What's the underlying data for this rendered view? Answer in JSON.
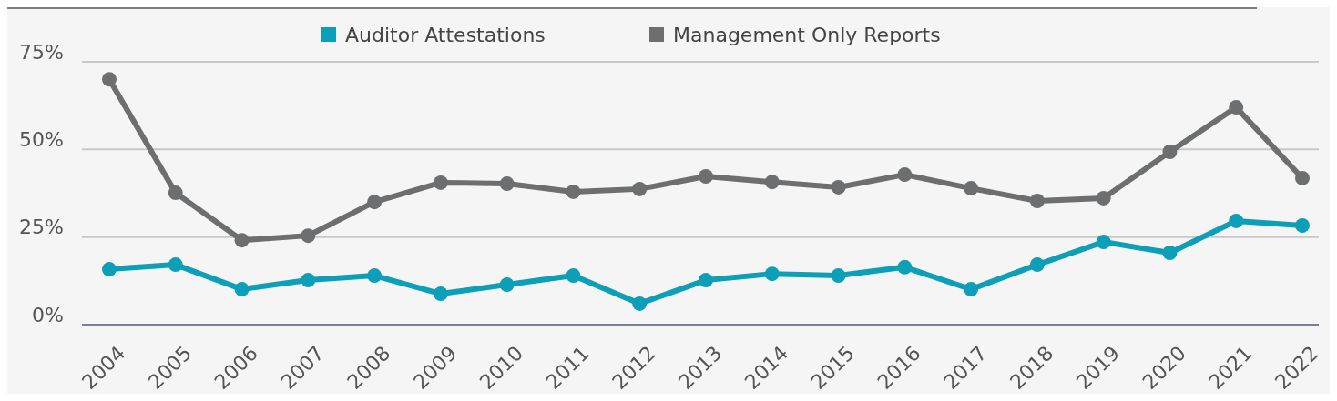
{
  "chart_data": {
    "type": "line",
    "categories": [
      "2004",
      "2005",
      "2006",
      "2007",
      "2008",
      "2009",
      "2010",
      "2011",
      "2012",
      "2013",
      "2014",
      "2015",
      "2016",
      "2017",
      "2018",
      "2019",
      "2020",
      "2021",
      "2022"
    ],
    "series": [
      {
        "name": "Auditor Attestations",
        "color": "#0e9fb8",
        "values": [
          15.8,
          17.1,
          10.1,
          12.7,
          14,
          8.8,
          11.4,
          14,
          6,
          12.7,
          14.5,
          14,
          16.4,
          10.1,
          17.1,
          23.6,
          20.5,
          29.6,
          28.3
        ]
      },
      {
        "name": "Management Only Reports",
        "color": "#6d6e6f",
        "values": [
          70,
          37.6,
          24.1,
          25.4,
          35,
          40.5,
          40.2,
          37.9,
          38.7,
          42.3,
          40.7,
          39.2,
          42.8,
          38.9,
          35.3,
          36.1,
          49.3,
          62,
          41.8
        ]
      }
    ],
    "ylim": [
      0,
      75
    ],
    "yticks": [
      {
        "value": 0,
        "label": "0%"
      },
      {
        "value": 25,
        "label": "25%"
      },
      {
        "value": 50,
        "label": "50%"
      },
      {
        "value": 75,
        "label": "75%"
      }
    ],
    "grid": "y",
    "legend": "top",
    "marker": "circle",
    "line_style": "solid"
  }
}
